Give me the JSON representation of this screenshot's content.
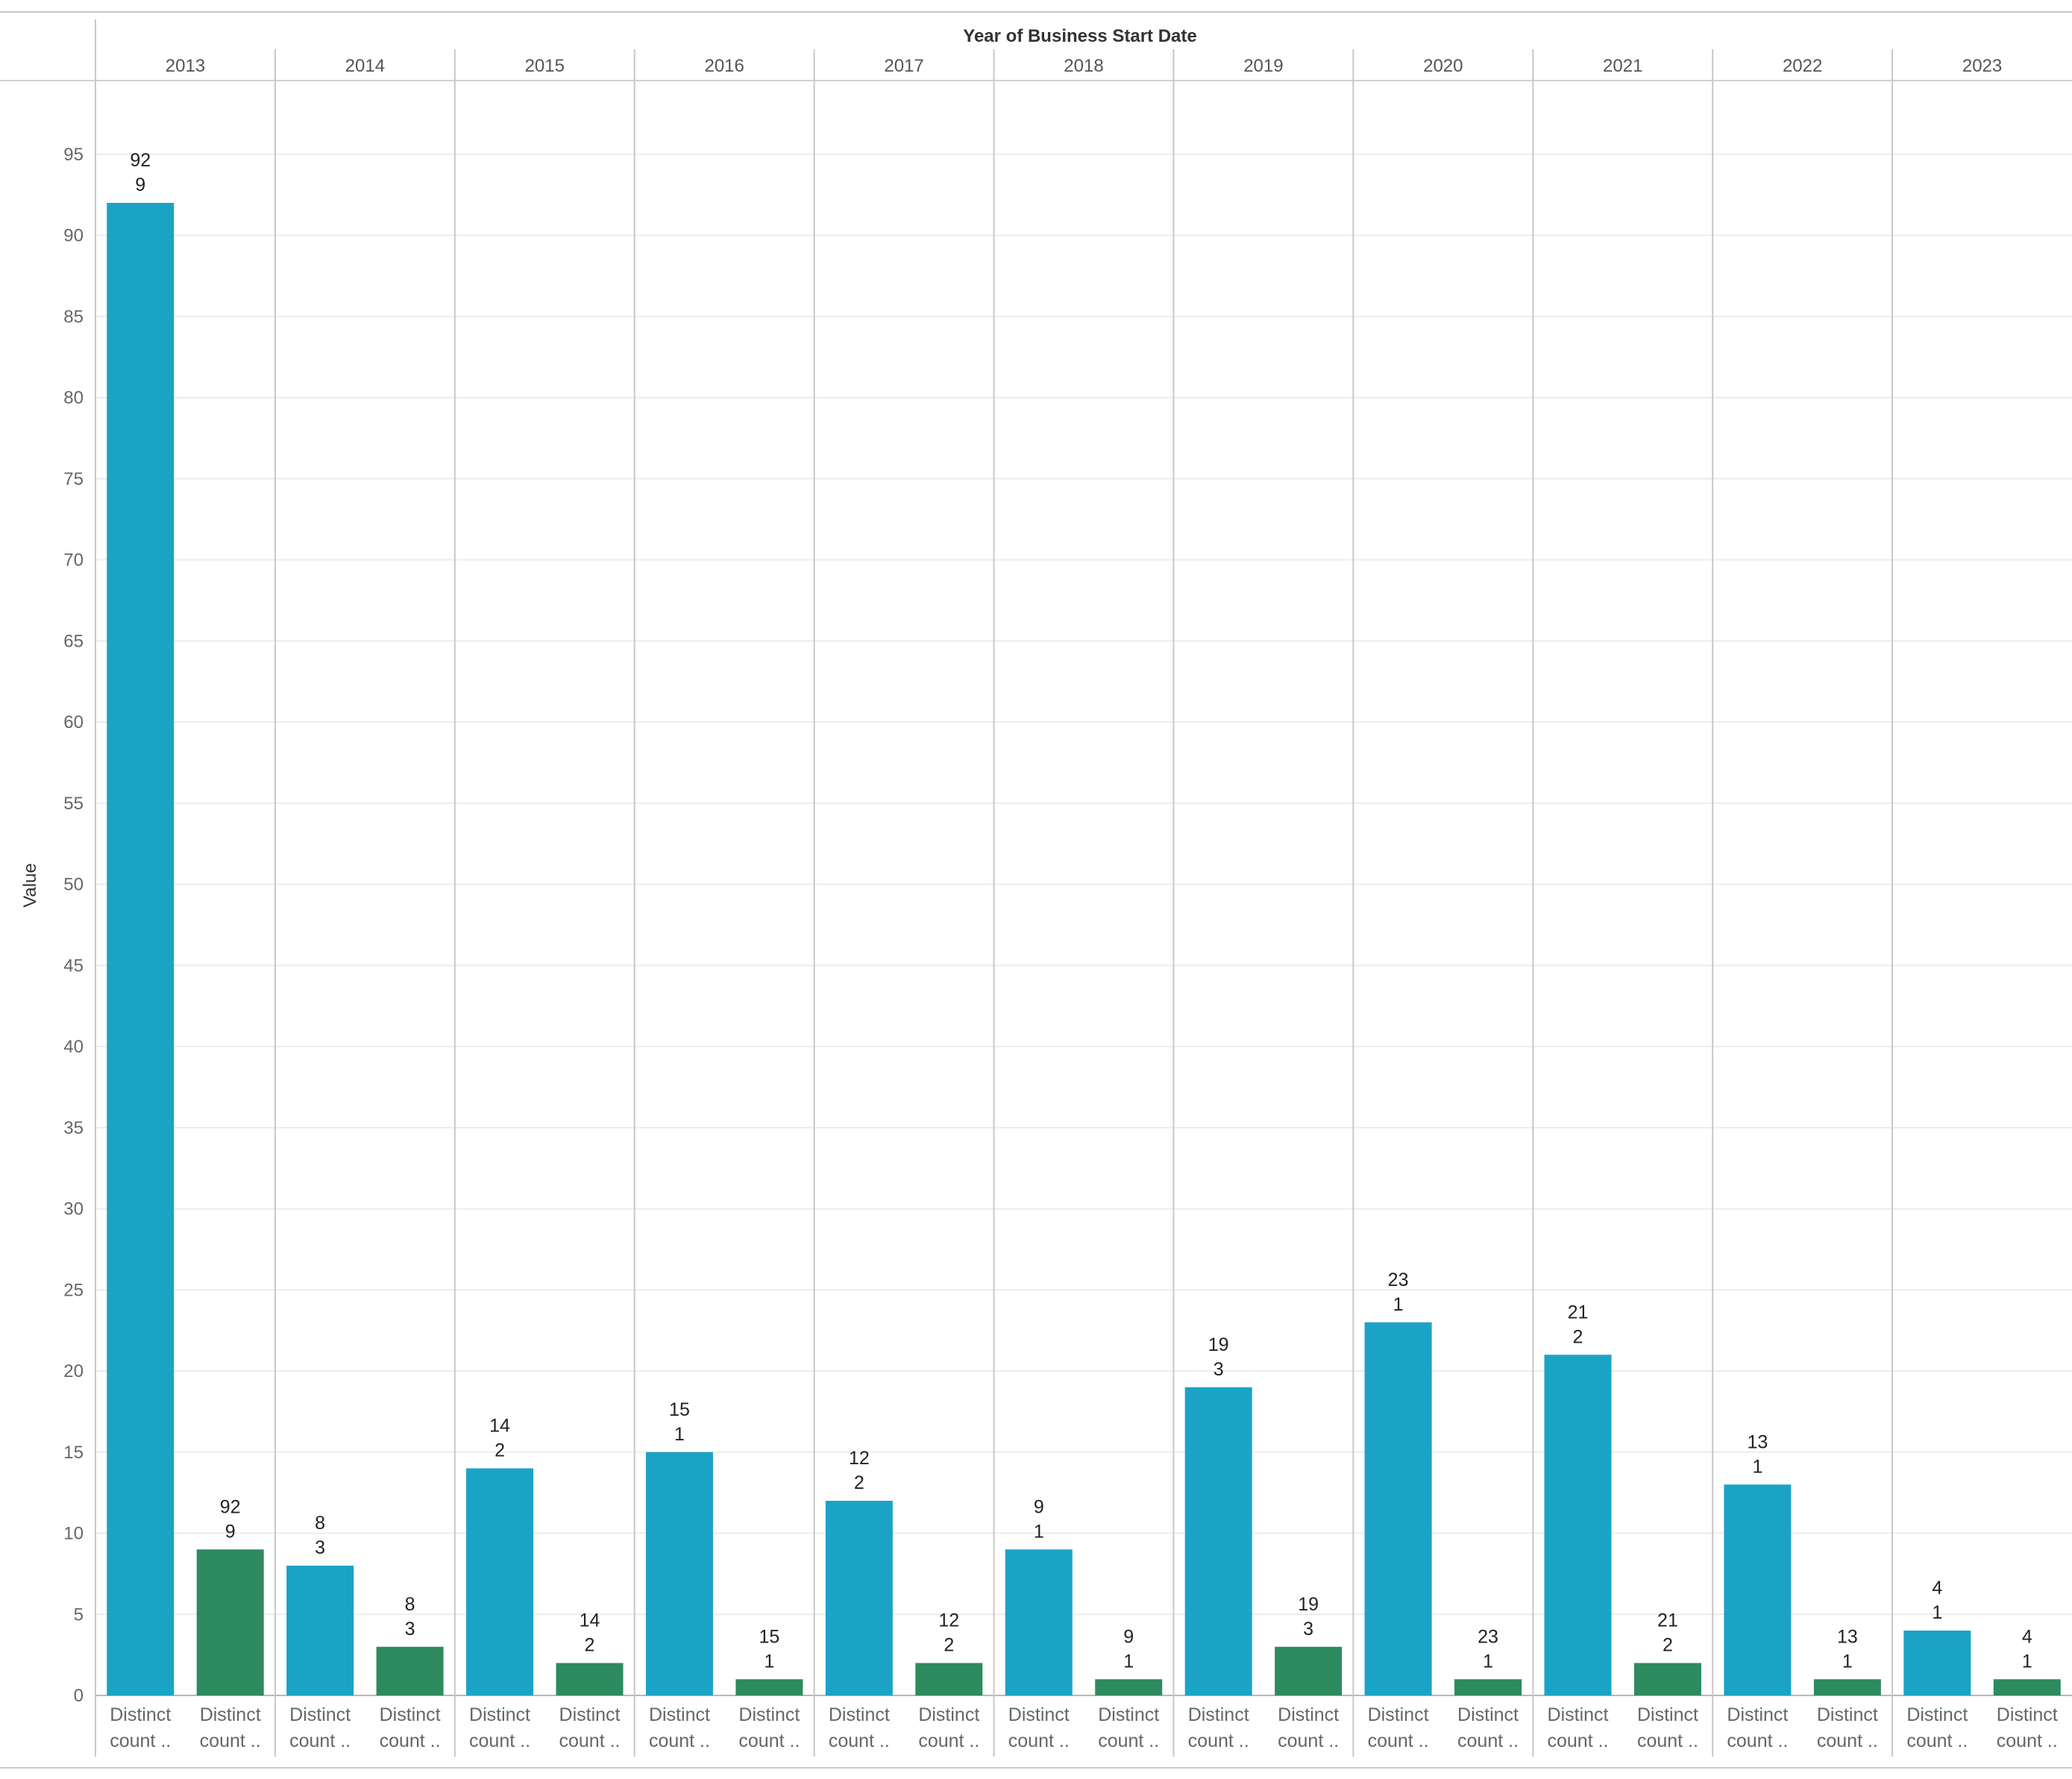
{
  "chart_data": {
    "type": "bar",
    "header_title": "Year of Business Start Date",
    "ylabel": "Value",
    "ylim": [
      0,
      95
    ],
    "yticks": [
      0,
      5,
      10,
      15,
      20,
      25,
      30,
      35,
      40,
      45,
      50,
      55,
      60,
      65,
      70,
      75,
      80,
      85,
      90,
      95
    ],
    "grid": true,
    "categories": [
      "2013",
      "2014",
      "2015",
      "2016",
      "2017",
      "2018",
      "2019",
      "2020",
      "2021",
      "2022",
      "2023"
    ],
    "bar_labels": [
      "Distinct\ncount ..",
      "Distinct\ncount .."
    ],
    "series": [
      {
        "values": [
          92,
          8,
          14,
          15,
          12,
          9,
          19,
          23,
          21,
          13,
          4
        ],
        "value_labels": [
          "92\n9",
          "8\n3",
          "14\n2",
          "15\n1",
          "12\n2",
          "9\n1",
          "19\n3",
          "23\n1",
          "21\n2",
          "13\n1",
          "4\n1"
        ],
        "color": "#1BA3C6"
      },
      {
        "values": [
          9,
          3,
          2,
          1,
          2,
          1,
          3,
          1,
          2,
          1,
          1
        ],
        "value_labels": [
          "92\n9",
          "8\n3",
          "14\n2",
          "15\n1",
          "12\n2",
          "9\n1",
          "19\n3",
          "23\n1",
          "21\n2",
          "13\n1",
          "4\n1"
        ],
        "color": "#2E8A5F"
      }
    ]
  }
}
